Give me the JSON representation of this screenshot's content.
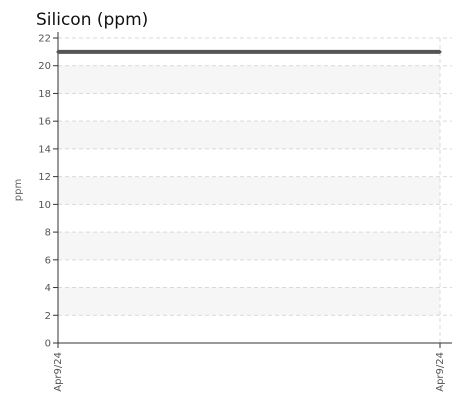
{
  "chart_data": {
    "type": "line",
    "title": "Silicon (ppm)",
    "xlabel": "",
    "ylabel": "ppm",
    "x": [
      "Apr9/24",
      "Apr9/24"
    ],
    "series": [
      {
        "values": [
          21,
          21
        ],
        "color": "#555555"
      }
    ],
    "ylim": [
      0,
      22
    ],
    "yticks": [
      0,
      2,
      4,
      6,
      8,
      10,
      12,
      14,
      16,
      18,
      20,
      22
    ],
    "grid": true,
    "band_color": "#f6f6f6",
    "grid_color": "#d9d9d9",
    "axis_color": "#333333"
  }
}
